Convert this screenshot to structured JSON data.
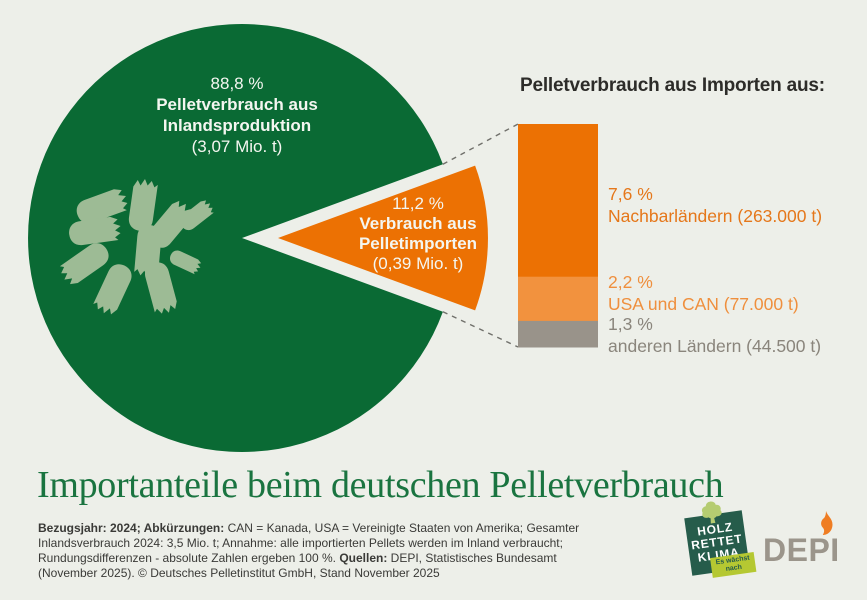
{
  "colors": {
    "background": "#edefe9",
    "inland_green": "#0a6a34",
    "import_orange": "#ec7103",
    "pellets_sage": "#9dbb95",
    "dash_gray": "#70706b",
    "title_green": "#1a7440",
    "heading_dark": "#2d2c29",
    "footnote_dark": "#3a3a37",
    "label_white": "#f4f6f0",
    "depi_gray": "#9b958b",
    "depi_flame_orange": "#ef7d23",
    "hrk_green": "#265c4b",
    "hrk_leaf": "#b5cc71",
    "hrk_banner": "#b5c832"
  },
  "chart_data": {
    "type": "pie",
    "title": "Importanteile beim deutschen Pelletverbrauch",
    "slices": [
      {
        "name": "Inlandsproduktion",
        "value": 88.8,
        "pct_label": "88,8 %",
        "label_lines": [
          "Pelletverbrauch aus",
          "Inlandsproduktion"
        ],
        "amount": "(3,07 Mio. t)",
        "color": "#0a6a34",
        "exploded": false
      },
      {
        "name": "Pelletimporte",
        "value": 11.2,
        "pct_label": "11,2 %",
        "label_lines": [
          "Verbrauch aus",
          "Pelletimporten"
        ],
        "amount": "(0,39 Mio. t)",
        "color": "#ec7103",
        "exploded": true
      }
    ],
    "imports_breakdown": {
      "heading": "Pelletverbrauch aus Importen aus:",
      "type": "stacked-bar",
      "segments": [
        {
          "name": "Nachbarländer",
          "value": 7.6,
          "pct_label": "7,6 %",
          "label": "Nachbarländern (263.000 t)",
          "color": "#ec7103",
          "text_color": "#e5771a"
        },
        {
          "name": "USA und CAN",
          "value": 2.2,
          "pct_label": "2,2 %",
          "label": "USA und CAN (77.000 t)",
          "color": "#f2923e",
          "text_color": "#ef8f3d"
        },
        {
          "name": "andere Länder",
          "value": 1.3,
          "pct_label": "1,3 %",
          "label": "anderen Ländern (44.500 t)",
          "color": "#99938a",
          "text_color": "#8a857c"
        }
      ]
    }
  },
  "title": {
    "text": "Importanteile beim deutschen Pelletverbrauch"
  },
  "footnote": {
    "segments": [
      {
        "text": "Bezugsjahr: 2024; Abkürzungen: ",
        "bold": true
      },
      {
        "text": "CAN = Kanada, USA = Vereinigte Staaten von Amerika; Gesamter Inlandsverbrauch 2024: 3,5 Mio. t; Annahme: alle importierten Pellets werden im Inland verbraucht; Rundungsdifferenzen - absolute Zahlen ergeben 100 %. ",
        "bold": false
      },
      {
        "text": "Quellen: ",
        "bold": true
      },
      {
        "text": "DEPI, Statistisches Bundesamt (November 2025).  © Deutsches Pelletinstitut GmbH, Stand November 2025",
        "bold": false
      }
    ]
  },
  "logos": {
    "hrk": {
      "lines": [
        "HOLZ",
        "RETTET",
        "KLIMA"
      ],
      "banner_lines": [
        "Es wächst",
        "nach"
      ]
    },
    "depi": {
      "text": "DEPI"
    }
  }
}
